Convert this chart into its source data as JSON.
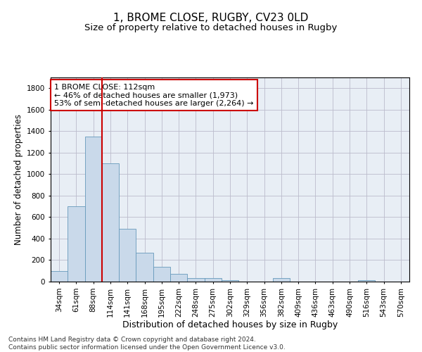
{
  "title": "1, BROME CLOSE, RUGBY, CV23 0LD",
  "subtitle": "Size of property relative to detached houses in Rugby",
  "xlabel": "Distribution of detached houses by size in Rugby",
  "ylabel": "Number of detached properties",
  "footer_line1": "Contains HM Land Registry data © Crown copyright and database right 2024.",
  "footer_line2": "Contains public sector information licensed under the Open Government Licence v3.0.",
  "bar_labels": [
    "34sqm",
    "61sqm",
    "88sqm",
    "114sqm",
    "141sqm",
    "168sqm",
    "195sqm",
    "222sqm",
    "248sqm",
    "275sqm",
    "302sqm",
    "329sqm",
    "356sqm",
    "382sqm",
    "409sqm",
    "436sqm",
    "463sqm",
    "490sqm",
    "516sqm",
    "543sqm",
    "570sqm"
  ],
  "bar_values": [
    100,
    700,
    1350,
    1100,
    490,
    270,
    140,
    70,
    35,
    35,
    15,
    0,
    0,
    30,
    0,
    0,
    0,
    0,
    15,
    0,
    0
  ],
  "bar_color": "#c9d9ea",
  "bar_edge_color": "#6699bb",
  "grid_color": "#bbbbcc",
  "vline_color": "#cc0000",
  "annotation_line1": "1 BROME CLOSE: 112sqm",
  "annotation_line2": "← 46% of detached houses are smaller (1,973)",
  "annotation_line3": "53% of semi-detached houses are larger (2,264) →",
  "ylim": [
    0,
    1900
  ],
  "yticks": [
    0,
    200,
    400,
    600,
    800,
    1000,
    1200,
    1400,
    1600,
    1800
  ],
  "background_color": "#ffffff",
  "plot_bg_color": "#e8eef5",
  "title_fontsize": 11,
  "subtitle_fontsize": 9.5,
  "xlabel_fontsize": 9,
  "ylabel_fontsize": 8.5,
  "tick_fontsize": 7.5,
  "annot_fontsize": 8,
  "footer_fontsize": 6.5
}
